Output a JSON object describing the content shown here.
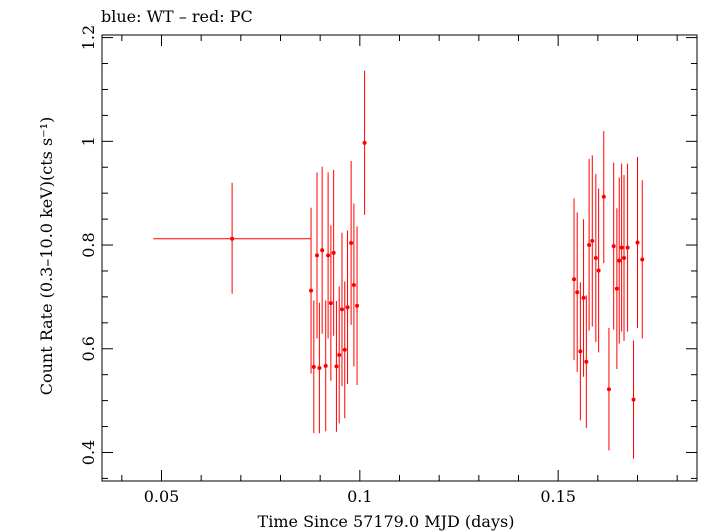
{
  "chart_data": {
    "type": "scatter",
    "title": "blue: WT – red: PC",
    "xlabel": "Time Since 57179.0 MJD (days)",
    "ylabel": "Count Rate (0.3–10.0 keV)(cts s⁻¹)",
    "xlim": [
      0.035,
      0.185
    ],
    "ylim": [
      0.345,
      1.205
    ],
    "xticks": [
      0.05,
      0.1,
      0.15
    ],
    "xtick_labels": [
      "0.05",
      "0.1",
      "0.15"
    ],
    "yticks": [
      0.4,
      0.6,
      0.8,
      1.0,
      1.2
    ],
    "ytick_labels": [
      "0.4",
      "0.6",
      "0.8",
      "1",
      "1.2"
    ],
    "grid": false,
    "series": [
      {
        "color": "#ff0000",
        "points": [
          {
            "x": 0.0678,
            "y": 0.812,
            "xlo": 0.0479,
            "xhi": 0.0877,
            "ylo": 0.706,
            "yhi": 0.92
          },
          {
            "x": 0.0877,
            "y": 0.712,
            "xlo": 0.0877,
            "xhi": 0.0877,
            "ylo": 0.552,
            "yhi": 0.872
          },
          {
            "x": 0.0884,
            "y": 0.565,
            "xlo": 0.0884,
            "xhi": 0.0884,
            "ylo": 0.437,
            "yhi": 0.693
          },
          {
            "x": 0.0892,
            "y": 0.78,
            "xlo": 0.0892,
            "xhi": 0.0892,
            "ylo": 0.62,
            "yhi": 0.94
          },
          {
            "x": 0.0898,
            "y": 0.563,
            "xlo": 0.0898,
            "xhi": 0.0898,
            "ylo": 0.437,
            "yhi": 0.689
          },
          {
            "x": 0.0905,
            "y": 0.79,
            "xlo": 0.0905,
            "xhi": 0.0905,
            "ylo": 0.629,
            "yhi": 0.951
          },
          {
            "x": 0.0914,
            "y": 0.567,
            "xlo": 0.0914,
            "xhi": 0.0914,
            "ylo": 0.441,
            "yhi": 0.693
          },
          {
            "x": 0.092,
            "y": 0.78,
            "xlo": 0.092,
            "xhi": 0.092,
            "ylo": 0.62,
            "yhi": 0.94
          },
          {
            "x": 0.0927,
            "y": 0.688,
            "xlo": 0.0927,
            "xhi": 0.0927,
            "ylo": 0.538,
            "yhi": 0.838
          },
          {
            "x": 0.0934,
            "y": 0.785,
            "xlo": 0.0934,
            "xhi": 0.0934,
            "ylo": 0.625,
            "yhi": 0.945
          },
          {
            "x": 0.0941,
            "y": 0.566,
            "xlo": 0.0941,
            "xhi": 0.0941,
            "ylo": 0.44,
            "yhi": 0.692
          },
          {
            "x": 0.0948,
            "y": 0.588,
            "xlo": 0.0948,
            "xhi": 0.0948,
            "ylo": 0.456,
            "yhi": 0.72
          },
          {
            "x": 0.0955,
            "y": 0.676,
            "xlo": 0.0955,
            "xhi": 0.0955,
            "ylo": 0.528,
            "yhi": 0.824
          },
          {
            "x": 0.0962,
            "y": 0.598,
            "xlo": 0.0962,
            "xhi": 0.0962,
            "ylo": 0.466,
            "yhi": 0.73
          },
          {
            "x": 0.0969,
            "y": 0.68,
            "xlo": 0.0969,
            "xhi": 0.0969,
            "ylo": 0.532,
            "yhi": 0.828
          },
          {
            "x": 0.0978,
            "y": 0.804,
            "xlo": 0.0978,
            "xhi": 0.0978,
            "ylo": 0.646,
            "yhi": 0.962
          },
          {
            "x": 0.0985,
            "y": 0.723,
            "xlo": 0.0985,
            "xhi": 0.0985,
            "ylo": 0.566,
            "yhi": 0.88
          },
          {
            "x": 0.0993,
            "y": 0.683,
            "xlo": 0.0993,
            "xhi": 0.0993,
            "ylo": 0.53,
            "yhi": 0.836
          },
          {
            "x": 0.1012,
            "y": 0.997,
            "xlo": 0.1012,
            "xhi": 0.1012,
            "ylo": 0.858,
            "yhi": 1.136
          },
          {
            "x": 0.154,
            "y": 0.734,
            "xlo": 0.154,
            "xhi": 0.154,
            "ylo": 0.578,
            "yhi": 0.89
          },
          {
            "x": 0.1548,
            "y": 0.709,
            "xlo": 0.1548,
            "xhi": 0.1548,
            "ylo": 0.555,
            "yhi": 0.863
          },
          {
            "x": 0.1556,
            "y": 0.595,
            "xlo": 0.1556,
            "xhi": 0.1556,
            "ylo": 0.462,
            "yhi": 0.728
          },
          {
            "x": 0.1564,
            "y": 0.698,
            "xlo": 0.1564,
            "xhi": 0.1564,
            "ylo": 0.546,
            "yhi": 0.85
          },
          {
            "x": 0.1571,
            "y": 0.575,
            "xlo": 0.1571,
            "xhi": 0.1571,
            "ylo": 0.447,
            "yhi": 0.703
          },
          {
            "x": 0.1578,
            "y": 0.8,
            "xlo": 0.1578,
            "xhi": 0.1578,
            "ylo": 0.635,
            "yhi": 0.966
          },
          {
            "x": 0.1586,
            "y": 0.808,
            "xlo": 0.1586,
            "xhi": 0.1586,
            "ylo": 0.643,
            "yhi": 0.973
          },
          {
            "x": 0.1595,
            "y": 0.775,
            "xlo": 0.1595,
            "xhi": 0.1595,
            "ylo": 0.613,
            "yhi": 0.937
          },
          {
            "x": 0.1602,
            "y": 0.751,
            "xlo": 0.1602,
            "xhi": 0.1602,
            "ylo": 0.593,
            "yhi": 0.909
          },
          {
            "x": 0.1615,
            "y": 0.893,
            "xlo": 0.1615,
            "xhi": 0.1615,
            "ylo": 0.765,
            "yhi": 1.02
          },
          {
            "x": 0.1628,
            "y": 0.522,
            "xlo": 0.1628,
            "xhi": 0.1628,
            "ylo": 0.404,
            "yhi": 0.64
          },
          {
            "x": 0.164,
            "y": 0.798,
            "xlo": 0.164,
            "xhi": 0.164,
            "ylo": 0.637,
            "yhi": 0.959
          },
          {
            "x": 0.1648,
            "y": 0.716,
            "xlo": 0.1648,
            "xhi": 0.1648,
            "ylo": 0.561,
            "yhi": 0.871
          },
          {
            "x": 0.1654,
            "y": 0.77,
            "xlo": 0.1654,
            "xhi": 0.1654,
            "ylo": 0.61,
            "yhi": 0.93
          },
          {
            "x": 0.166,
            "y": 0.795,
            "xlo": 0.166,
            "xhi": 0.166,
            "ylo": 0.633,
            "yhi": 0.957
          },
          {
            "x": 0.1666,
            "y": 0.775,
            "xlo": 0.1666,
            "xhi": 0.1666,
            "ylo": 0.615,
            "yhi": 0.935
          },
          {
            "x": 0.1675,
            "y": 0.795,
            "xlo": 0.1675,
            "xhi": 0.1675,
            "ylo": 0.633,
            "yhi": 0.957
          },
          {
            "x": 0.169,
            "y": 0.502,
            "xlo": 0.169,
            "xhi": 0.169,
            "ylo": 0.388,
            "yhi": 0.616
          },
          {
            "x": 0.17,
            "y": 0.805,
            "xlo": 0.17,
            "xhi": 0.17,
            "ylo": 0.64,
            "yhi": 0.97
          },
          {
            "x": 0.1712,
            "y": 0.772,
            "xlo": 0.1712,
            "xhi": 0.1712,
            "ylo": 0.62,
            "yhi": 0.925
          }
        ]
      }
    ]
  }
}
